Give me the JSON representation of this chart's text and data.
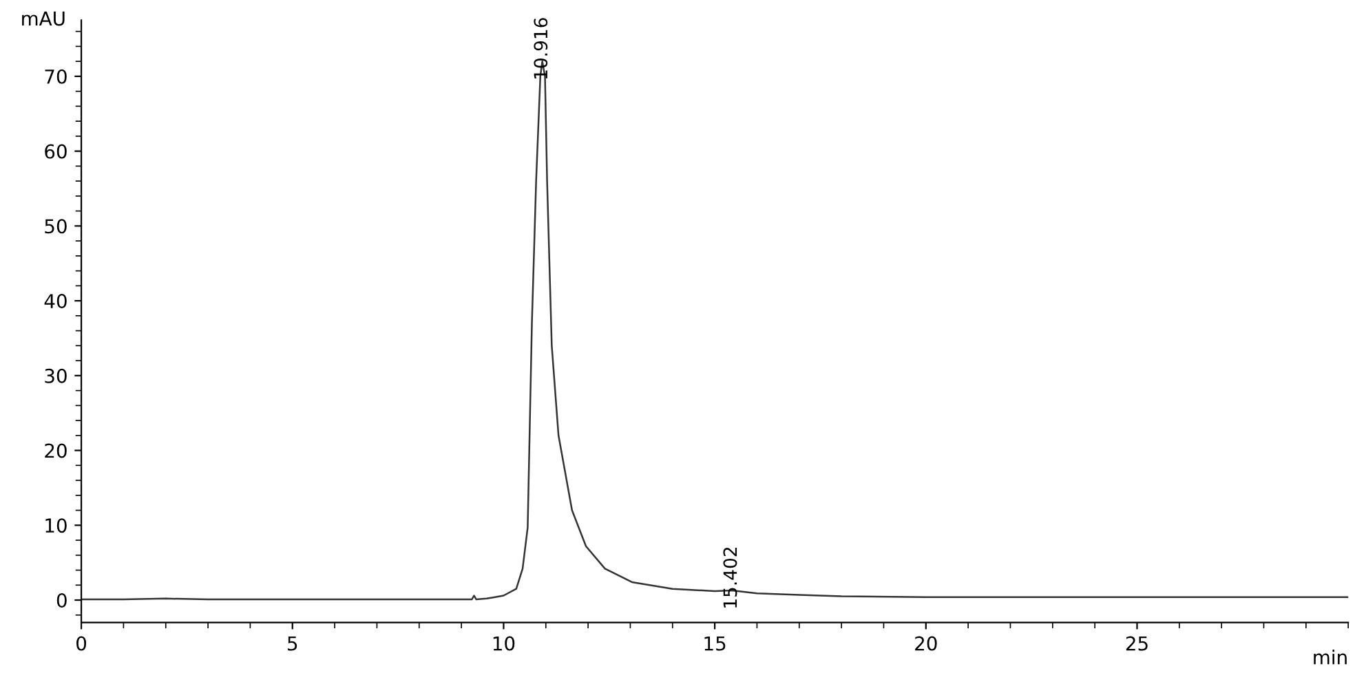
{
  "chart_data": {
    "type": "line",
    "xlabel": "min",
    "ylabel": "mAU",
    "x": [
      0,
      1,
      2,
      3,
      5,
      7,
      9,
      9.25,
      9.3,
      9.35,
      9.6,
      9.8,
      10.0,
      10.3,
      10.45,
      10.57,
      10.67,
      10.77,
      10.87,
      10.916,
      10.98,
      11.03,
      11.14,
      11.3,
      11.62,
      11.95,
      12.4,
      13.04,
      14.0,
      15.0,
      15.402,
      16.0,
      17.0,
      18.0,
      20.0,
      25.0,
      30.0
    ],
    "series": [
      {
        "color": "#333333",
        "values": [
          0.1,
          0.1,
          0.2,
          0.1,
          0.1,
          0.1,
          0.1,
          0.1,
          0.6,
          0.1,
          0.2,
          0.4,
          0.6,
          1.5,
          4.2,
          9.7,
          37,
          56,
          70,
          72,
          70,
          56,
          34,
          22,
          12,
          7.2,
          4.2,
          2.4,
          1.5,
          1.2,
          1.3,
          0.9,
          0.7,
          0.5,
          0.4,
          0.4,
          0.4
        ]
      }
    ],
    "annotations": [
      {
        "text": "10.916",
        "x": 10.916,
        "y": 72
      },
      {
        "text": "15.402",
        "x": 15.402,
        "y": 1.3
      }
    ],
    "xlim": [
      0,
      30
    ],
    "ylim": [
      -3,
      77.5
    ],
    "xticks": [
      0,
      5,
      10,
      15,
      20,
      25
    ],
    "yticks": [
      0,
      10,
      20,
      30,
      40,
      50,
      60,
      70
    ],
    "grid": false,
    "legend": false,
    "marker": "none",
    "line_style": "solid"
  }
}
